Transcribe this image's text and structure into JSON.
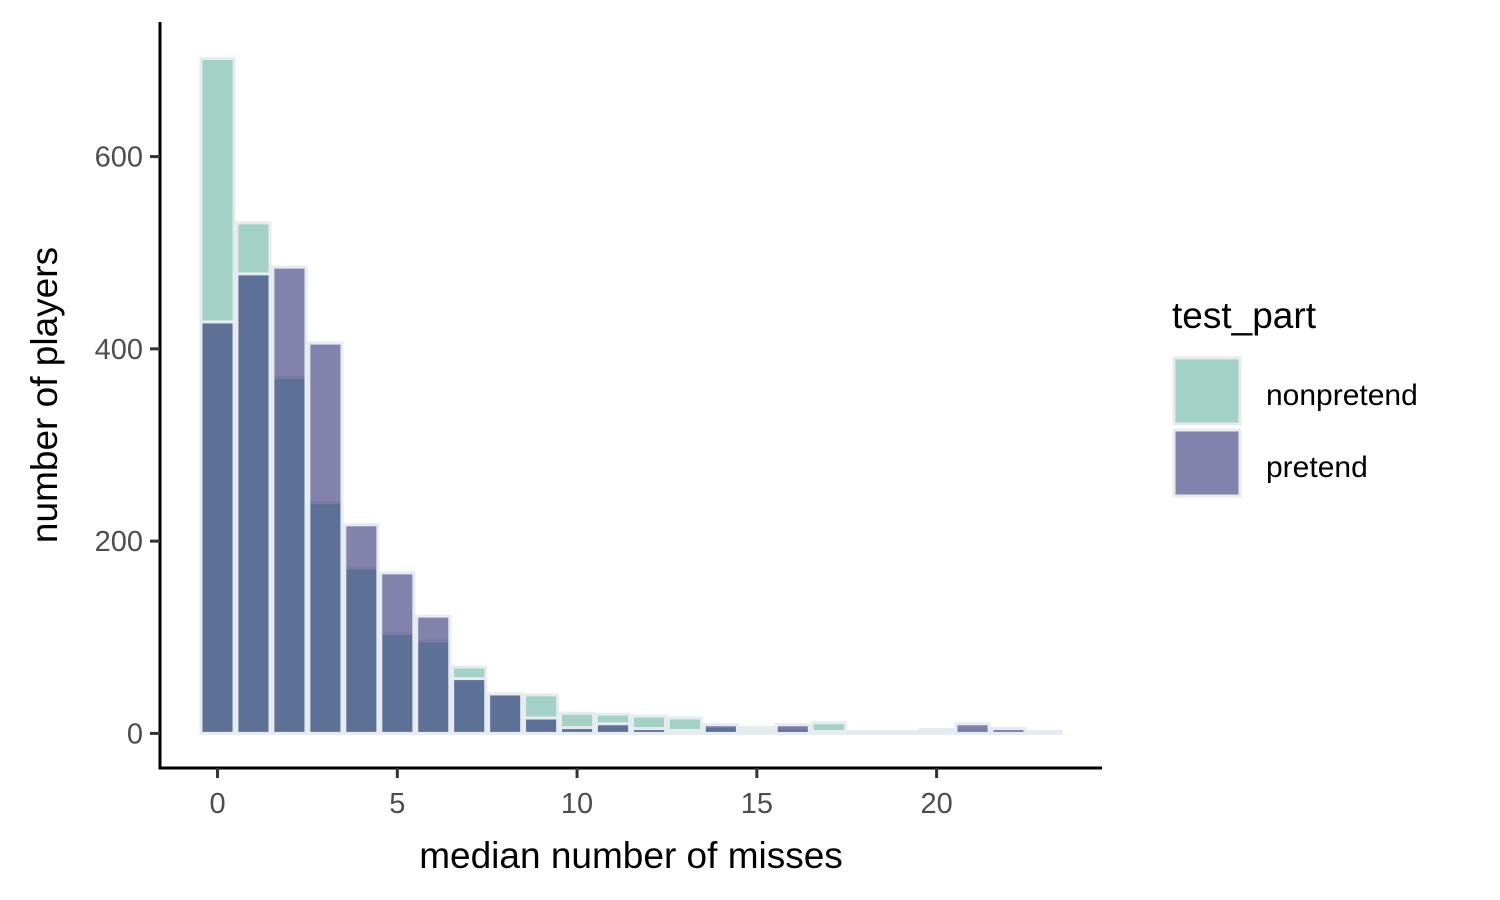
{
  "chart_data": {
    "type": "bar",
    "overlay": true,
    "title": "",
    "xlabel": "median number of misses",
    "ylabel": "number of players",
    "x": [
      0,
      1,
      2,
      3,
      4,
      5,
      6,
      7,
      8,
      9,
      10,
      11,
      12,
      13,
      14,
      15,
      16,
      17,
      18,
      19,
      20,
      21,
      22,
      23
    ],
    "xlim": [
      -1.6,
      24.6
    ],
    "ylim": [
      -36,
      740
    ],
    "xticks": [
      0,
      5,
      10,
      15,
      20
    ],
    "yticks": [
      0,
      200,
      400,
      600
    ],
    "series": [
      {
        "name": "nonpretend",
        "color": "#66b2a0",
        "values": [
          702,
          531,
          370,
          240,
          172,
          104,
          96,
          69,
          41,
          40,
          21,
          20,
          18,
          16,
          7,
          6,
          5,
          11,
          2,
          2,
          4,
          3,
          3,
          2
        ]
      },
      {
        "name": "pretend",
        "color": "#2e2f77",
        "values": [
          428,
          478,
          485,
          406,
          217,
          167,
          122,
          57,
          41,
          16,
          6,
          10,
          5,
          3,
          9,
          3,
          9,
          2,
          1,
          1,
          1,
          10,
          5,
          1
        ]
      }
    ],
    "legend": {
      "title": "test_part",
      "position": "right",
      "entries": [
        "nonpretend",
        "pretend"
      ]
    },
    "bar_outline_color": "#e6ebf0",
    "fill_opacity": 0.6
  }
}
